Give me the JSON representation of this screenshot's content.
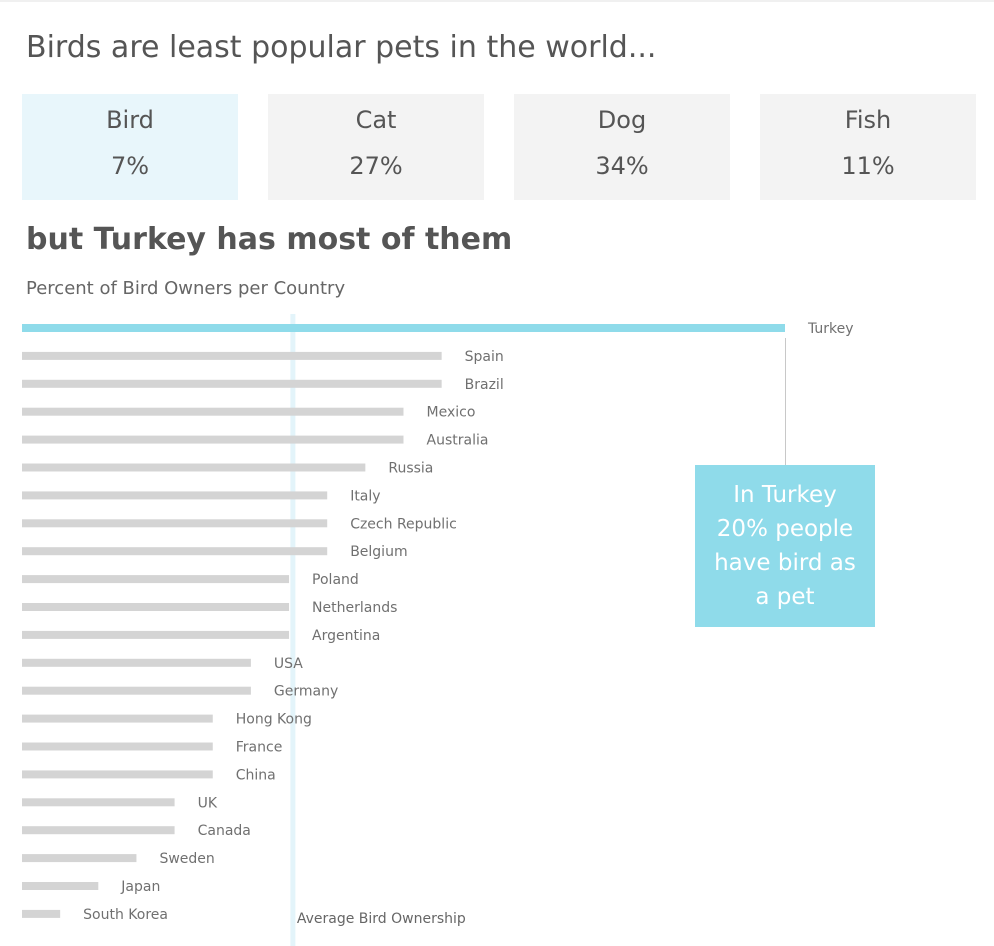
{
  "title": "Birds are least popular pets in the world...",
  "cards": [
    {
      "label": "Bird",
      "value": "7%"
    },
    {
      "label": "Cat",
      "value": "27%"
    },
    {
      "label": "Dog",
      "value": "34%"
    },
    {
      "label": "Fish",
      "value": "11%"
    }
  ],
  "subtitle": "but Turkey has most of them",
  "callout_text": "In Turkey 20% people have bird as a pet",
  "colors": {
    "highlight": "#8fdbea",
    "bar": "#d4d4d4",
    "average_line": "#e3f4fa",
    "highlight_card": "#e8f6fb",
    "card": "#f3f3f3"
  },
  "chart_data": {
    "type": "bar",
    "orientation": "horizontal",
    "title": "Percent of Bird Owners per Country",
    "categories": [
      "Turkey",
      "Spain",
      "Brazil",
      "Mexico",
      "Australia",
      "Russia",
      "Italy",
      "Czech Republic",
      "Belgium",
      "Poland",
      "Netherlands",
      "Argentina",
      "USA",
      "Germany",
      "Hong Kong",
      "France",
      "China",
      "UK",
      "Canada",
      "Sweden",
      "Japan",
      "South Korea"
    ],
    "values": [
      20,
      11,
      11,
      10,
      10,
      9,
      8,
      8,
      8,
      7,
      7,
      7,
      6,
      6,
      5,
      5,
      5,
      4,
      4,
      3,
      2,
      1
    ],
    "highlighted_category": "Turkey",
    "xlim": [
      0,
      20
    ],
    "reference_line": {
      "label": "Average Bird Ownership",
      "value": 7.1
    },
    "grid": false,
    "legend": "none",
    "xlabel": "",
    "ylabel": ""
  }
}
